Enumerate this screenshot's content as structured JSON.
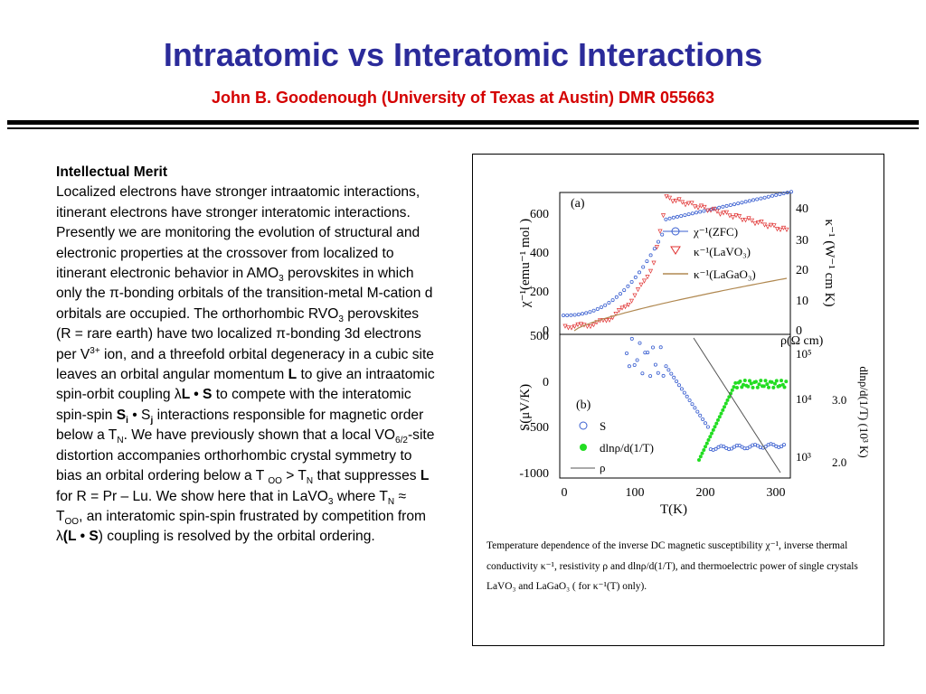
{
  "slide": {
    "title": "Intraatomic vs Interatomic Interactions",
    "subtitle": "John B. Goodenough (University of Texas at Austin)  DMR 055663"
  },
  "body": {
    "heading": "Intellectual Merit",
    "p1": "Localized electrons have stronger intraatomic interactions, itinerant electrons have stronger interatomic interactions.  Presently we are monitoring the evolution of structural and electronic properties at the crossover from localized to itinerant electronic behavior in AMO",
    "p1_sub": "3",
    "p2": " perovskites in which only the π-bonding orbitals of the transition-metal M-cation d orbitals are occupied.  The orthorhombic RVO",
    "p2_sub": "3",
    "p3": " perovskites (R = rare earth) have two localized π-bonding 3d electrons per V",
    "p3_sup": "3+",
    "p4": " ion, and a threefold orbital degeneracy in a cubic site leaves an orbital angular momentum ",
    "p4_bold": "L",
    "p5": " to give an intraatomic spin-orbit coupling ",
    "p5_lambda": "λ",
    "p5_bold": "L • S",
    "p6": " to compete with the interatomic spin-spin ",
    "p6_Si": "S",
    "p6_i": "i",
    "p6_dot": " • S",
    "p6_j": "j",
    "p7": " interactions responsible for magnetic order below a T",
    "p7_sub": "N",
    "p8": ".  We have previously shown that a local VO",
    "p8_sub": "6/2",
    "p9": "-site distortion accompanies orthorhombic crystal symmetry to bias an orbital ordering below a T ",
    "p9_sub": "OO",
    "p10": " > T",
    "p10_sub": "N",
    "p11": " that suppresses ",
    "p11_bold": "L",
    "p12": " for R = Pr – Lu.  We show here that in LaVO",
    "p12_sub": "3",
    "p13": " where T",
    "p13_sub": "N",
    "p14": " ≈ T",
    "p14_sub": "OO",
    "p15": ", an interatomic spin-spin  frustrated by competition from ",
    "p15_lambda": "λ",
    "p15_bold": "(L • S",
    "p16": ") coupling is resolved by the orbital ordering."
  },
  "figure": {
    "panel_a": {
      "label": "(a)",
      "y_left": "χ⁻¹(emu⁻¹ mol )",
      "y_right": "κ⁻¹ (W⁻¹ cm K)",
      "yticks_left": [
        "600",
        "400",
        "200",
        "0"
      ],
      "yticks_right": [
        "40",
        "30",
        "20",
        "10",
        "0"
      ],
      "legend": [
        "χ⁻¹(ZFC)",
        "κ⁻¹(LaVO₃)",
        "κ⁻¹(LaGaO₃)"
      ],
      "rho_label": "ρ(Ω cm)"
    },
    "panel_b": {
      "label": "(b)",
      "y_left": "S(μV/K)",
      "y_right": "dlnρ/d(1/T) (10³ K)",
      "yticks_left": [
        "500",
        "0",
        "-500",
        "-1000"
      ],
      "yticks_right_log": [
        "10⁵",
        "10⁴",
        "10³"
      ],
      "yticks_right2": [
        "3.0",
        "2.0"
      ],
      "legend": [
        "S",
        "dlnρ/d(1/T)",
        "ρ"
      ],
      "xticks": [
        "0",
        "100",
        "200",
        "300"
      ],
      "xlabel": "T(K)"
    },
    "caption": "Temperature dependence of the  inverse DC magnetic susceptibility χ⁻¹, inverse thermal conductivity κ⁻¹, resistivity ρ and dlnρ/d(1/T), and thermoelectric power of single crystals LaVO₃ and LaGaO₃ ( for κ⁻¹(T) only).",
    "colors": {
      "chi": "#3a5fd0",
      "kappa_LaVO3": "#e03030",
      "kappa_LaGaO3": "#b08850",
      "S": "#3a5fd0",
      "dlnrho": "#22dd22",
      "rho": "#555555"
    }
  }
}
